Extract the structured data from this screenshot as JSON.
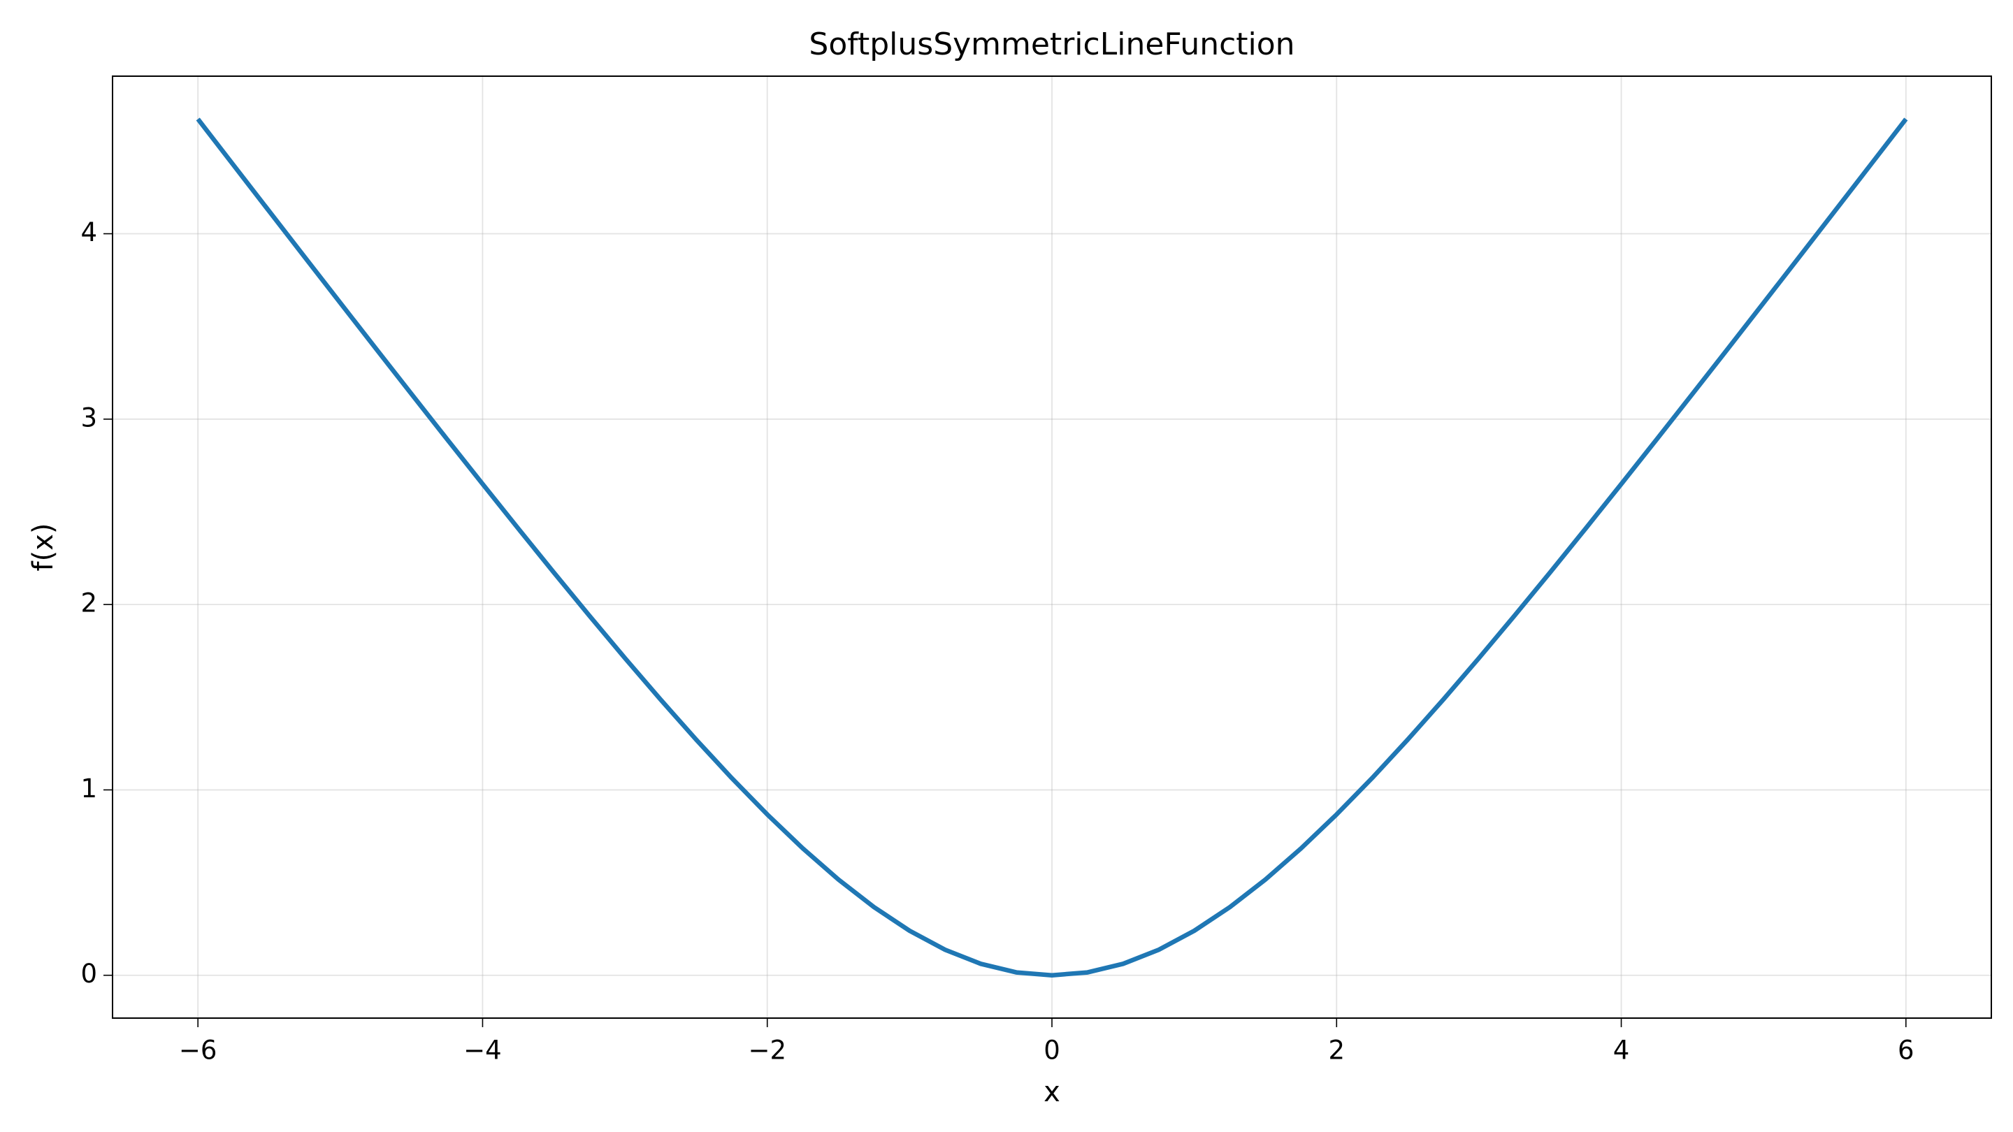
{
  "chart_data": {
    "type": "line",
    "title": "SoftplusSymmetricLineFunction",
    "x_label": "x",
    "y_label": "f(x)",
    "x": [
      -6,
      -5.75,
      -5.5,
      -5.25,
      -5,
      -4.75,
      -4.5,
      -4.25,
      -4,
      -3.75,
      -3.5,
      -3.25,
      -3,
      -2.75,
      -2.5,
      -2.25,
      -2,
      -1.75,
      -1.5,
      -1.25,
      -1,
      -0.75,
      -0.5,
      -0.25,
      0,
      0.25,
      0.5,
      0.75,
      1,
      1.25,
      1.5,
      1.75,
      2,
      2.25,
      2.5,
      2.75,
      3,
      3.25,
      3.5,
      3.75,
      4,
      4.25,
      4.5,
      4.75,
      5,
      5.25,
      5.5,
      5.75,
      6
    ],
    "series": [
      {
        "color": "#1f77b4",
        "values": [
          4.6187,
          4.3701,
          4.1219,
          3.8742,
          3.6272,
          3.3809,
          3.1358,
          2.892,
          2.65,
          2.4102,
          2.1732,
          1.9398,
          1.7109,
          1.4876,
          1.2715,
          1.0641,
          0.8676,
          0.6842,
          0.5165,
          0.3676,
          0.2402,
          0.1374,
          0.0619,
          0.0156,
          0,
          0.0156,
          0.0619,
          0.1374,
          0.2402,
          0.3676,
          0.5165,
          0.6842,
          0.8676,
          1.0641,
          1.2715,
          1.4876,
          1.7109,
          1.9398,
          2.1732,
          2.4102,
          2.65,
          2.892,
          3.1358,
          3.3809,
          3.6272,
          3.8742,
          4.1219,
          4.3701,
          4.6187
        ]
      }
    ],
    "xlim": [
      -6.6,
      6.6
    ],
    "ylim": [
      -0.231,
      4.85
    ],
    "xticks": [
      {
        "value": -6,
        "label": "−6"
      },
      {
        "value": -4,
        "label": "−4"
      },
      {
        "value": -2,
        "label": "−2"
      },
      0,
      2,
      4,
      6
    ],
    "yticks": [
      0,
      1,
      2,
      3,
      4
    ],
    "grid": true
  }
}
